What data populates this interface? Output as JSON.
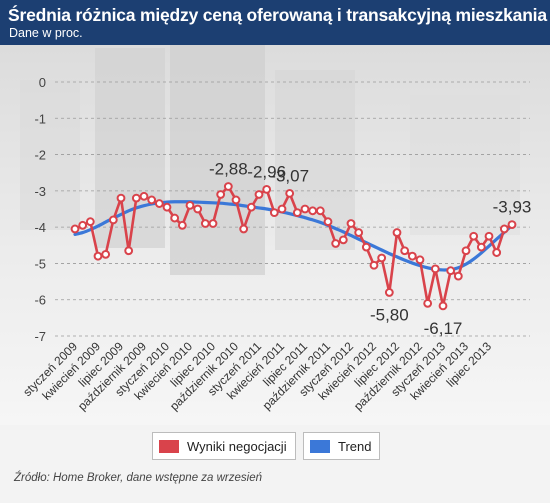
{
  "title": "Średnia różnica między ceną oferowaną i transakcyjną mieszkania",
  "subtitle": "Dane w proc.",
  "source": "Źródło: Home Broker, dane wstępne za wrzesień",
  "colors": {
    "header": "#1c3f72",
    "series_negotiation": "#d9434b",
    "series_trend": "#3b78d8"
  },
  "legend": {
    "items": [
      {
        "label": "Wyniki negocjacji",
        "color": "#d9434b"
      },
      {
        "label": "Trend",
        "color": "#3b78d8"
      }
    ]
  },
  "chart_data": {
    "type": "line",
    "ylim": [
      -7,
      0
    ],
    "yticks": [
      0,
      -1,
      -2,
      -3,
      -4,
      -5,
      -6,
      -7
    ],
    "grid": true,
    "legend_position": "bottom",
    "x_tick_labels": [
      "styczeń 2009",
      "kwiecień 2009",
      "lipiec 2009",
      "październik 2009",
      "styczeń 2010",
      "kwiecień 2010",
      "lipiec 2010",
      "październik 2010",
      "styczeń 2011",
      "kwiecień 2011",
      "lipiec 2011",
      "październik 2011",
      "styczeń 2012",
      "kwiecień 2012",
      "lipiec 2012",
      "październik 2012",
      "styczeń 2013",
      "kwiecień 2013",
      "lipiec 2013"
    ],
    "series": [
      {
        "name": "Wyniki negocjacji",
        "style": "line-markers",
        "values": [
          -4.05,
          -3.95,
          -3.85,
          -4.8,
          -4.75,
          -3.8,
          -3.2,
          -4.65,
          -3.2,
          -3.15,
          -3.25,
          -3.35,
          -3.45,
          -3.75,
          -3.95,
          -3.4,
          -3.5,
          -3.9,
          -3.9,
          -3.1,
          -2.88,
          -3.25,
          -4.05,
          -3.45,
          -3.1,
          -2.96,
          -3.6,
          -3.5,
          -3.07,
          -3.6,
          -3.5,
          -3.55,
          -3.55,
          -3.85,
          -4.45,
          -4.35,
          -3.9,
          -4.15,
          -4.55,
          -5.05,
          -4.85,
          -5.8,
          -4.15,
          -4.65,
          -4.8,
          -4.9,
          -6.1,
          -5.15,
          -6.17,
          -5.2,
          -5.35,
          -4.65,
          -4.25,
          -4.55,
          -4.25,
          -4.7,
          -4.05,
          -3.93
        ]
      },
      {
        "name": "Trend",
        "style": "smooth-line",
        "values": [
          -4.2,
          -4.15,
          -4.07,
          -3.97,
          -3.86,
          -3.75,
          -3.65,
          -3.55,
          -3.47,
          -3.41,
          -3.36,
          -3.33,
          -3.31,
          -3.3,
          -3.3,
          -3.3,
          -3.31,
          -3.32,
          -3.33,
          -3.34,
          -3.36,
          -3.38,
          -3.41,
          -3.44,
          -3.47,
          -3.5,
          -3.54,
          -3.58,
          -3.63,
          -3.68,
          -3.74,
          -3.8,
          -3.87,
          -3.95,
          -4.04,
          -4.13,
          -4.23,
          -4.33,
          -4.43,
          -4.53,
          -4.63,
          -4.73,
          -4.82,
          -4.91,
          -4.99,
          -5.06,
          -5.12,
          -5.16,
          -5.18,
          -5.17,
          -5.12,
          -5.02,
          -4.88,
          -4.71,
          -4.52,
          -4.33,
          -4.14,
          -3.95
        ]
      }
    ],
    "annotations": [
      {
        "index": 20,
        "text": "-2,88",
        "placement": "above"
      },
      {
        "index": 25,
        "text": "-2,96",
        "placement": "above"
      },
      {
        "index": 28,
        "text": "-3,07",
        "placement": "above"
      },
      {
        "index": 41,
        "text": "-5,80",
        "placement": "below"
      },
      {
        "index": 48,
        "text": "-6,17",
        "placement": "below"
      },
      {
        "index": 57,
        "text": "-3,93",
        "placement": "above"
      }
    ]
  }
}
